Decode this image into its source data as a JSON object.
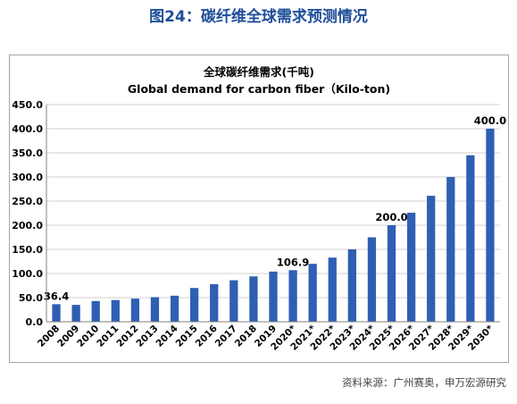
{
  "figure_title": "图24：碳纤维全球需求预测情况",
  "source_note": "资料来源：广州赛奥，申万宏源研究",
  "colors": {
    "bar": "#2f5fb3",
    "title": "#1f4e9a",
    "grid": "#d0d0d0",
    "axis": "#808080"
  },
  "chart_data": {
    "type": "bar",
    "title": "全球碳纤维需求(千吨)",
    "subtitle": "Global demand for carbon fiber（Kilo-ton)",
    "xlabel": "",
    "ylabel": "",
    "ylim": [
      0,
      450
    ],
    "yticks": [
      "0.0",
      "50.0",
      "100.0",
      "150.0",
      "200.0",
      "250.0",
      "300.0",
      "350.0",
      "400.0",
      "450.0"
    ],
    "grid": true,
    "legend": "none",
    "categories": [
      "2008",
      "2009",
      "2010",
      "2011",
      "2012",
      "2013",
      "2014",
      "2015",
      "2016",
      "2017",
      "2018",
      "2019",
      "2020*",
      "2021*",
      "2022*",
      "2023*",
      "2024*",
      "2025*",
      "2026*",
      "2027*",
      "2028*",
      "2029*",
      "2030*"
    ],
    "values": [
      36.4,
      35,
      43,
      45,
      48,
      51,
      54,
      70,
      78,
      86,
      94,
      104,
      106.9,
      120,
      133,
      150,
      175,
      200,
      226,
      261,
      300,
      345,
      400
    ],
    "data_labels": [
      {
        "index": 0,
        "text": "36.4"
      },
      {
        "index": 12,
        "text": "106.9"
      },
      {
        "index": 17,
        "text": "200.0"
      },
      {
        "index": 22,
        "text": "400.0"
      }
    ]
  }
}
